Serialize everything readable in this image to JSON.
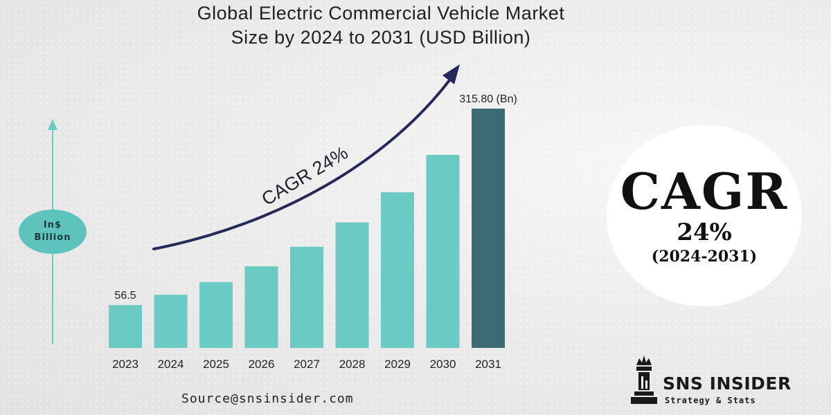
{
  "title": {
    "line1": "Global Electric Commercial Vehicle Market",
    "line2": "Size by 2024 to 2031 (USD Billion)"
  },
  "unit_badge": {
    "line1": "In$",
    "line2": "Billion"
  },
  "cagr_arrow_label": "CAGR 24%",
  "cagr_badge": {
    "label": "CAGR",
    "value": "24%",
    "period": "(2024-2031)"
  },
  "source": "Source@snsinsider.com",
  "brand": {
    "name": "SNS INSIDER",
    "tagline": "Strategy & Stats"
  },
  "colors": {
    "bar": "#6ccac4",
    "bar_highlight": "#3d6a73",
    "arrow": "#262a5a",
    "axis_arrow": "#6ccac4"
  },
  "chart_data": {
    "type": "bar",
    "title": "Global Electric Commercial Vehicle Market Size by 2024 to 2031 (USD Billion)",
    "xlabel": "",
    "ylabel": "In$ Billion",
    "categories": [
      "2023",
      "2024",
      "2025",
      "2026",
      "2027",
      "2028",
      "2029",
      "2030",
      "2031"
    ],
    "values": [
      56.5,
      70.1,
      86.9,
      107.7,
      133.6,
      165.6,
      205.4,
      254.7,
      315.8
    ],
    "data_labels": [
      {
        "category": "2023",
        "text": "56.5"
      },
      {
        "category": "2031",
        "text": "315.80 (Bn)"
      }
    ],
    "highlight_category": "2031",
    "ylim": [
      0,
      315.8
    ],
    "grid": false,
    "annotation": "CAGR 24%"
  }
}
